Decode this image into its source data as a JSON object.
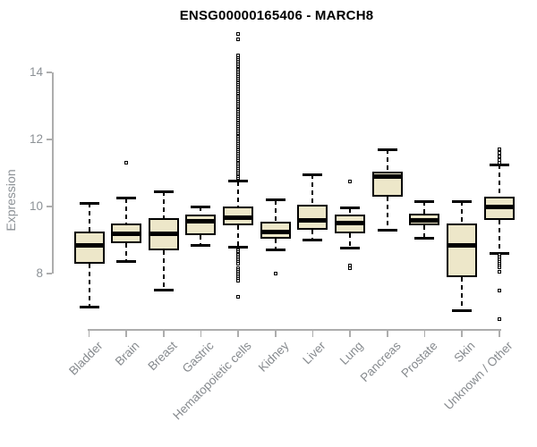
{
  "title": "ENSG00000165406 - MARCH8",
  "colors": {
    "background": "#FFFFFF",
    "box_fill": "#EDE7C9",
    "box_border": "#000000",
    "median": "#000000",
    "whisker": "#000000",
    "axis_line": "#ADADAD",
    "y_tick_label": "#8C9196",
    "x_tick_label": "#868A8E",
    "title_color": "#000000"
  },
  "chart_data": {
    "type": "boxplot",
    "title": "ENSG00000165406 - MARCH8",
    "xlabel": "",
    "ylabel": "Expression",
    "ylim": [
      6.3,
      15.4
    ],
    "yticks": [
      8,
      10,
      12,
      14
    ],
    "grid": false,
    "legend": "none",
    "categories": [
      "Bladder",
      "Brain",
      "Breast",
      "Gastric",
      "Hematopoietic cells",
      "Kidney",
      "Liver",
      "Lung",
      "Pancreas",
      "Prostate",
      "Skin",
      "Unknown / Other"
    ],
    "boxes": [
      {
        "label": "Bladder",
        "whisker_low": 7.0,
        "q1": 8.3,
        "median": 8.85,
        "q3": 9.25,
        "whisker_high": 10.1,
        "outliers": []
      },
      {
        "label": "Brain",
        "whisker_low": 8.35,
        "q1": 8.9,
        "median": 9.2,
        "q3": 9.5,
        "whisker_high": 10.25,
        "outliers": [
          11.3
        ]
      },
      {
        "label": "Breast",
        "whisker_low": 7.5,
        "q1": 8.7,
        "median": 9.2,
        "q3": 9.65,
        "whisker_high": 10.45,
        "outliers": []
      },
      {
        "label": "Gastric",
        "whisker_low": 8.85,
        "q1": 9.15,
        "median": 9.55,
        "q3": 9.75,
        "whisker_high": 10.0,
        "outliers": []
      },
      {
        "label": "Hematopoietic cells",
        "whisker_low": 8.8,
        "q1": 9.45,
        "median": 9.67,
        "q3": 10.0,
        "whisker_high": 10.75,
        "outliers": [
          10.85,
          10.9,
          10.95,
          11.0,
          11.05,
          11.1,
          11.15,
          11.2,
          11.25,
          11.3,
          11.35,
          11.4,
          11.45,
          11.5,
          11.55,
          11.6,
          11.65,
          11.7,
          11.75,
          11.8,
          11.85,
          11.9,
          11.95,
          12.0,
          12.05,
          12.1,
          12.15,
          12.2,
          12.25,
          12.3,
          12.35,
          12.4,
          12.45,
          12.5,
          12.55,
          12.6,
          12.65,
          12.7,
          12.75,
          12.8,
          12.85,
          12.9,
          12.95,
          13.0,
          13.05,
          13.1,
          13.15,
          13.2,
          13.25,
          13.3,
          13.35,
          13.4,
          13.45,
          13.5,
          13.55,
          13.6,
          13.65,
          13.7,
          13.75,
          13.8,
          13.85,
          13.9,
          13.95,
          14.0,
          14.05,
          14.1,
          14.15,
          14.2,
          14.25,
          14.3,
          14.35,
          14.4,
          14.45,
          14.5,
          15.0,
          15.15,
          8.7,
          8.65,
          8.6,
          8.55,
          8.5,
          8.45,
          8.4,
          8.35,
          8.3,
          8.15,
          8.1,
          8.05,
          8.0,
          7.95,
          7.9,
          7.85,
          7.8,
          7.3
        ]
      },
      {
        "label": "Kidney",
        "whisker_low": 8.7,
        "q1": 9.05,
        "median": 9.25,
        "q3": 9.55,
        "whisker_high": 10.2,
        "outliers": [
          8.0
        ]
      },
      {
        "label": "Liver",
        "whisker_low": 9.0,
        "q1": 9.3,
        "median": 9.6,
        "q3": 10.05,
        "whisker_high": 10.95,
        "outliers": []
      },
      {
        "label": "Lung",
        "whisker_low": 8.75,
        "q1": 9.2,
        "median": 9.5,
        "q3": 9.75,
        "whisker_high": 9.95,
        "outliers": [
          10.75,
          8.25,
          8.15
        ]
      },
      {
        "label": "Pancreas",
        "whisker_low": 9.3,
        "q1": 10.3,
        "median": 10.9,
        "q3": 11.05,
        "whisker_high": 11.7,
        "outliers": []
      },
      {
        "label": "Prostate",
        "whisker_low": 9.05,
        "q1": 9.45,
        "median": 9.6,
        "q3": 9.8,
        "whisker_high": 10.15,
        "outliers": []
      },
      {
        "label": "Skin",
        "whisker_low": 6.9,
        "q1": 7.9,
        "median": 8.85,
        "q3": 9.5,
        "whisker_high": 10.15,
        "outliers": []
      },
      {
        "label": "Unknown / Other",
        "whisker_low": 8.6,
        "q1": 9.6,
        "median": 10.0,
        "q3": 10.3,
        "whisker_high": 11.25,
        "outliers": [
          11.3,
          11.4,
          11.5,
          11.6,
          11.7,
          8.55,
          8.5,
          8.45,
          8.4,
          8.35,
          8.3,
          8.25,
          8.2,
          8.05,
          7.5,
          6.65
        ]
      }
    ]
  }
}
